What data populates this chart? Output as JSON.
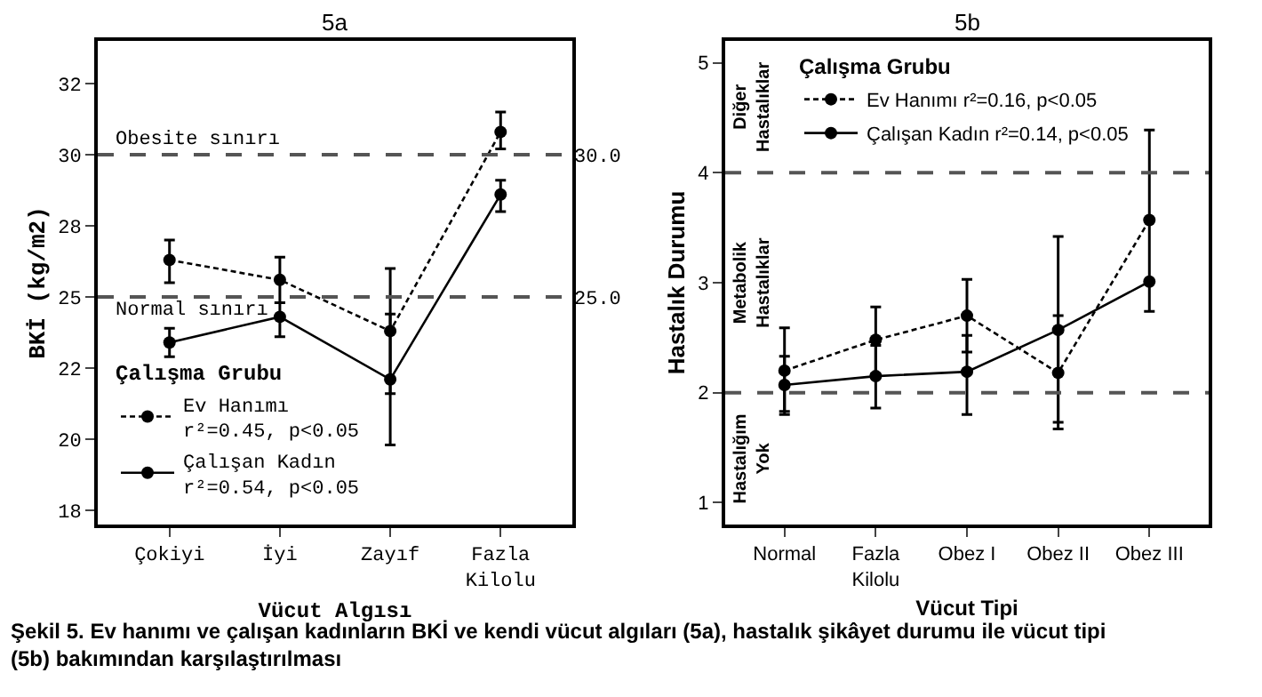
{
  "chart_data": [
    {
      "type": "line",
      "title": "5a",
      "xlabel": "Vücut Algısı",
      "ylabel": "BKİ (kg/m2)",
      "legend_title": "Çalışma Grubu",
      "categories": [
        "Çokiyi",
        "İyi",
        "Zayıf",
        "Fazla Kilolu"
      ],
      "series": [
        {
          "name": "Ev Hanımı\nr²=0.45, p<0.05",
          "color": "#000000",
          "line_style": "dotted",
          "values": [
            26.3,
            25.6,
            23.8,
            30.8
          ],
          "errors": [
            [
              25.5,
              27.0
            ],
            [
              24.8,
              26.4
            ],
            [
              21.6,
              26.0
            ],
            [
              30.2,
              31.5
            ]
          ]
        },
        {
          "name": "Çalışan Kadın\nr²=0.54, p<0.05",
          "color": "#000000",
          "line_style": "solid",
          "values": [
            23.4,
            24.3,
            22.1,
            28.6
          ],
          "errors": [
            [
              22.9,
              23.9
            ],
            [
              23.6,
              24.8
            ],
            [
              19.8,
              24.4
            ],
            [
              28.0,
              29.1
            ]
          ]
        }
      ],
      "ylim": [
        17,
        34
      ],
      "yticks": [
        {
          "value": 17.5,
          "label": "18"
        },
        20,
        {
          "value": 22.5,
          "label": "22"
        },
        25,
        {
          "value": 27.5,
          "label": "28"
        },
        30,
        {
          "value": 32.5,
          "label": "32"
        }
      ],
      "y2lim": [
        17,
        34
      ],
      "y2ticks": [
        {
          "value": 25,
          "label": "25.0"
        },
        {
          "value": 30,
          "label": "30.0"
        }
      ],
      "ref_lines": [
        {
          "axis": "y",
          "value": 30,
          "label": "Obesite sınırı",
          "line_style": "dashed"
        },
        {
          "axis": "y",
          "value": 25,
          "label": "Normal sınırı",
          "line_style": "dashed"
        }
      ],
      "marker": "circle",
      "grid": false,
      "legend": "bottom left",
      "annotations": [
        "Şekil 5. Ev hanımı ve çalışan kadınların BKİ ve kendi vücut algıları (5a), hastalık şikâyet durumu ile vücut tipi\n(5b) bakımından karşılaştırılması"
      ]
    },
    {
      "type": "line",
      "title": "5b",
      "xlabel": "Vücut Tipi",
      "ylabel": "Hastalık Durumu",
      "legend_title": "Çalışma Grubu",
      "categories": [
        "Normal",
        "Fazla Kilolu",
        "Obez I",
        "Obez II",
        "Obez III"
      ],
      "series": [
        {
          "name": "Ev Hanımı r²=0.16, p<0.05",
          "color": "#000000",
          "line_style": "dotted",
          "values": [
            2.2,
            2.48,
            2.7,
            2.18,
            3.57
          ],
          "errors": [
            [
              1.83,
              2.59
            ],
            [
              2.17,
              2.78
            ],
            [
              2.37,
              3.03
            ],
            [
              1.67,
              2.7
            ],
            [
              2.74,
              4.39
            ]
          ]
        },
        {
          "name": "Çalışan Kadın r²=0.14, p<0.05",
          "color": "#000000",
          "line_style": "solid",
          "values": [
            2.07,
            2.15,
            2.19,
            2.57,
            3.01
          ],
          "errors": [
            [
              1.8,
              2.33
            ],
            [
              1.86,
              2.43
            ],
            [
              1.8,
              2.52
            ],
            [
              1.73,
              3.42
            ],
            null
          ]
        }
      ],
      "ylim": [
        0.8,
        5.2
      ],
      "yticks": [
        1,
        2,
        3,
        4,
        5
      ],
      "ref_lines": [
        {
          "axis": "y",
          "value": 4,
          "line_style": "dashed"
        },
        {
          "axis": "y",
          "value": 2,
          "line_style": "dashed"
        }
      ],
      "marker": "circle",
      "grid": false,
      "legend": "top",
      "annotations": [
        "Diğer\nHastalıklar",
        "Metabolik\nHastalıklar",
        "Hastalığım\nYok"
      ]
    }
  ]
}
